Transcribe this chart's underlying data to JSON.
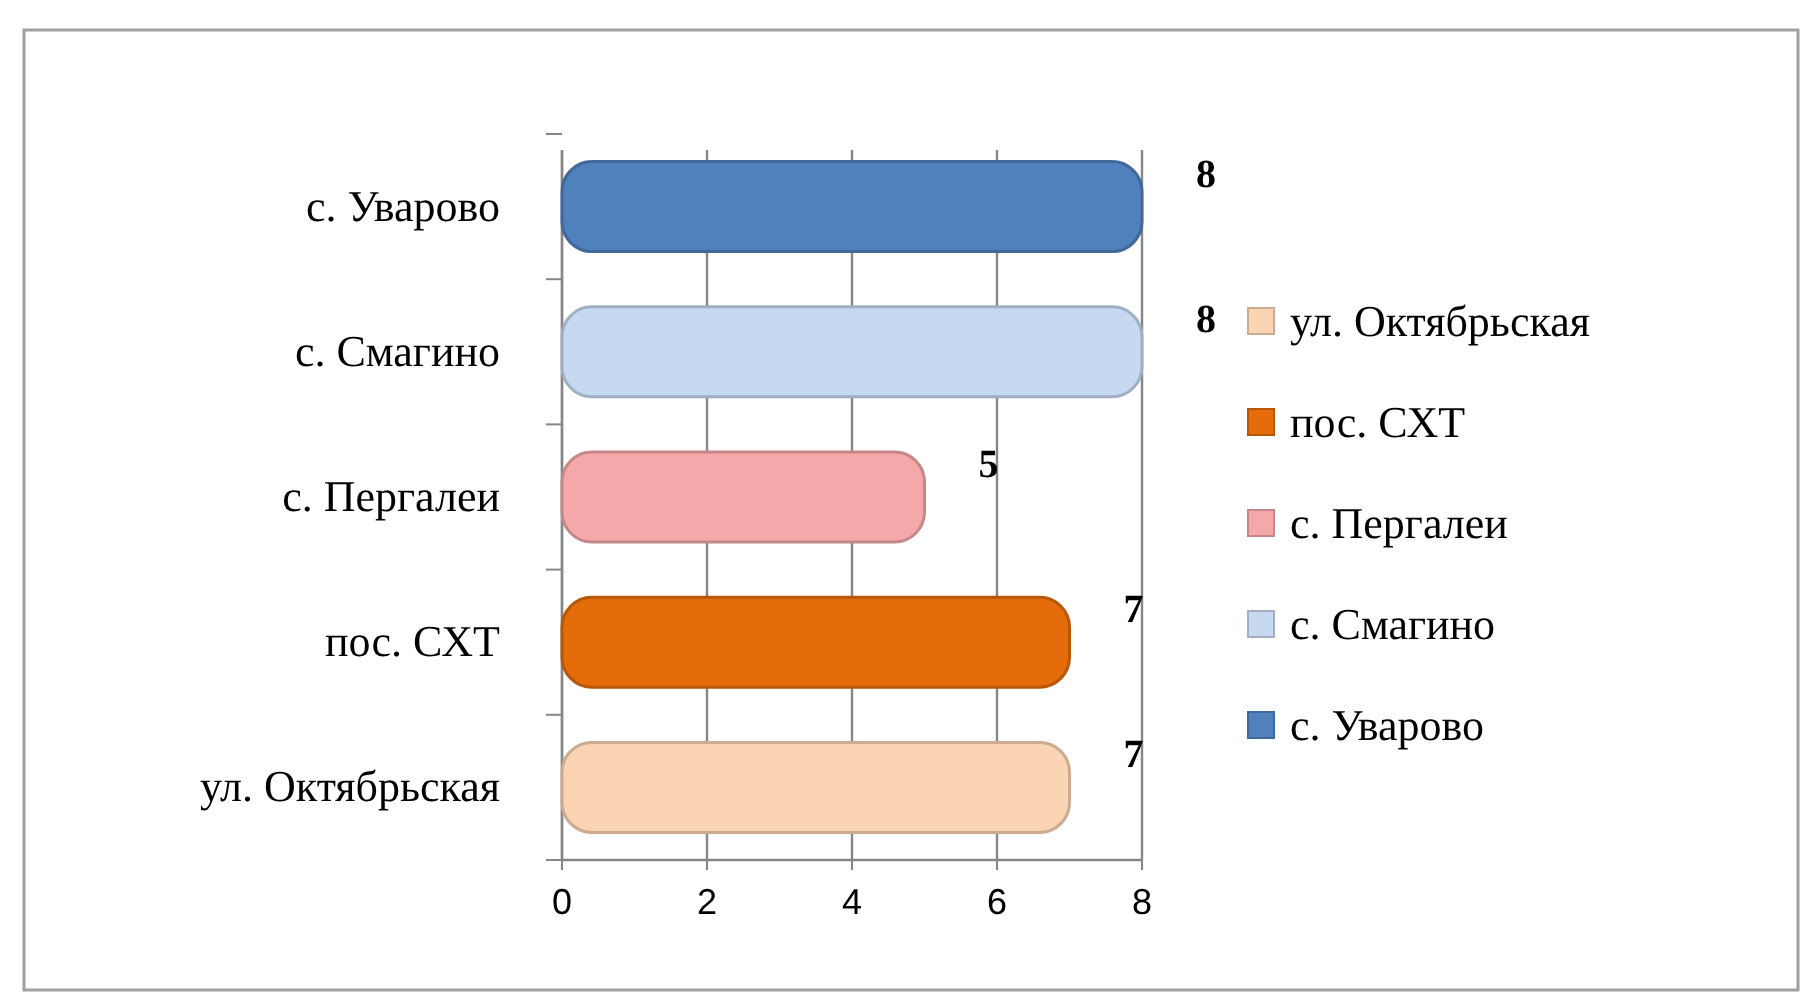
{
  "chart_data": {
    "type": "bar",
    "orientation": "horizontal",
    "categories": [
      "с. Уварово",
      "с. Смагино",
      "с. Пергалеи",
      "пос. СХТ",
      "ул. Октябрьская"
    ],
    "series": [
      {
        "name": "ул. Октябрьская",
        "color": "#fbd4b4",
        "values": [
          null,
          null,
          null,
          null,
          7
        ]
      },
      {
        "name": "пос. СХТ",
        "color": "#e46c0a",
        "values": [
          null,
          null,
          null,
          7,
          null
        ]
      },
      {
        "name": "с. Пергалеи",
        "color": "#f4a8aa",
        "values": [
          null,
          null,
          5,
          null,
          null
        ]
      },
      {
        "name": "с. Смагино",
        "color": "#c6d9f1",
        "values": [
          null,
          8,
          null,
          null,
          null
        ]
      },
      {
        "name": "с. Уварово",
        "color": "#4f81bd",
        "values": [
          8,
          null,
          null,
          null,
          null
        ]
      }
    ],
    "xlim": [
      0,
      8
    ],
    "xticks": [
      0,
      2,
      4,
      6,
      8
    ],
    "grid": "x",
    "data_labels": true,
    "legend": "right"
  }
}
